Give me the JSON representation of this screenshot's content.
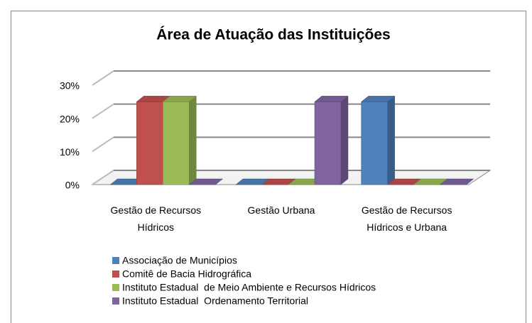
{
  "chart_data": {
    "type": "bar3d",
    "title": "Área de Atuação das Instituições",
    "categories": [
      "Gestão de Recursos Hídricos",
      "Gestão Urbana",
      "Gestão de Recursos Hídricos e Urbana"
    ],
    "series": [
      {
        "name": "Associação de Municípios",
        "color": "#4f81bd",
        "values": [
          0,
          0,
          25
        ]
      },
      {
        "name": "Comitê de Bacia Hidrográfica",
        "color": "#c0504d",
        "values": [
          25,
          0,
          0
        ]
      },
      {
        "name": "Instituto Estadual  de Meio Ambiente e Recursos Hídricos",
        "color": "#9bbb59",
        "values": [
          25,
          0,
          0
        ]
      },
      {
        "name": "Instituto Estadual  Ordenamento Territorial",
        "color": "#8064a2",
        "values": [
          0,
          25,
          0
        ]
      }
    ],
    "ylim": [
      0,
      30
    ],
    "yticks": [
      {
        "value": 0,
        "label": "0%"
      },
      {
        "value": 10,
        "label": "10%"
      },
      {
        "value": 20,
        "label": "20%"
      },
      {
        "value": 30,
        "label": "30%"
      }
    ],
    "grid": true,
    "legend": "bottom"
  }
}
